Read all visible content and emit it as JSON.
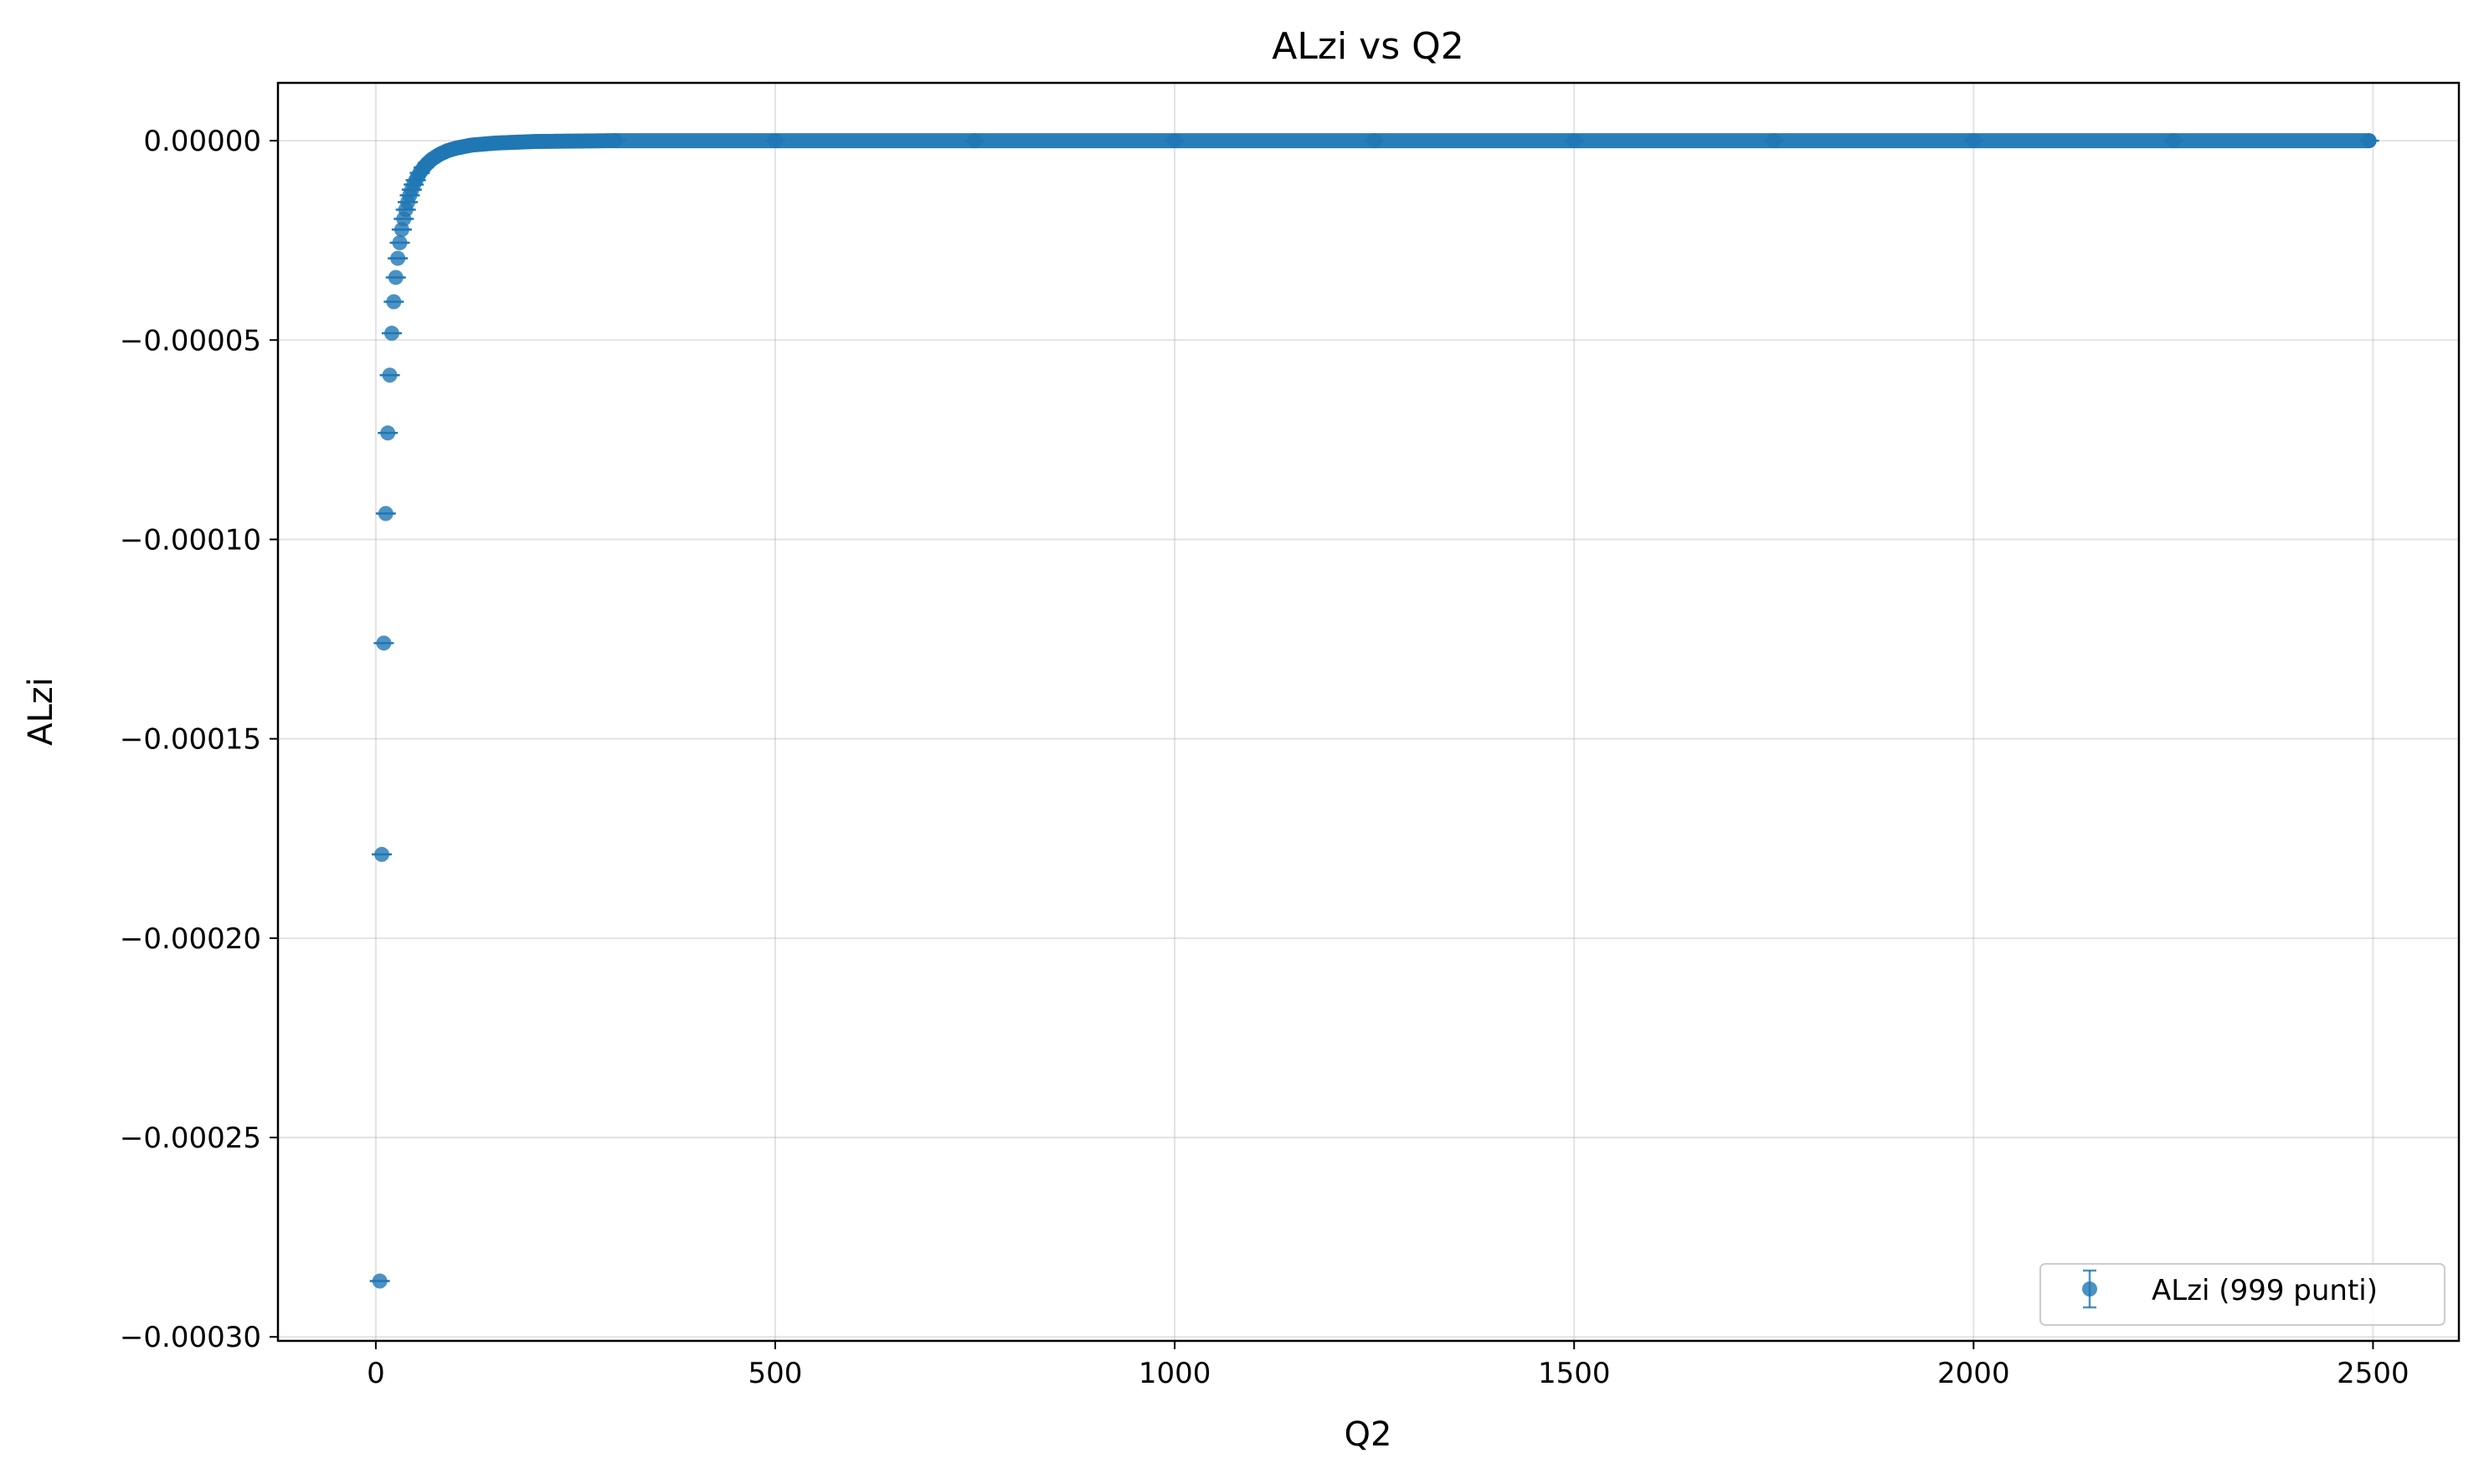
{
  "chart_data": {
    "type": "scatter",
    "title": "ALzi vs Q2",
    "xlabel": "Q2",
    "ylabel": "ALzi",
    "xlim": [
      -122.5,
      2607.5
    ],
    "ylim": [
      -0.000301,
      1.45e-05
    ],
    "x_ticks": [
      {
        "value": 0,
        "label": "0"
      },
      {
        "value": 500,
        "label": "500"
      },
      {
        "value": 1000,
        "label": "1000"
      },
      {
        "value": 1500,
        "label": "1500"
      },
      {
        "value": 2000,
        "label": "2000"
      },
      {
        "value": 2500,
        "label": "2500"
      }
    ],
    "y_ticks": [
      {
        "value": 0,
        "label": "0.00000"
      },
      {
        "value": -5e-05,
        "label": "−0.00005"
      },
      {
        "value": -0.0001,
        "label": "−0.00010"
      },
      {
        "value": -0.00015,
        "label": "−0.00015"
      },
      {
        "value": -0.0002,
        "label": "−0.00020"
      },
      {
        "value": -0.00025,
        "label": "−0.00025"
      },
      {
        "value": -0.0003,
        "label": "−0.00030"
      }
    ],
    "grid": true,
    "legend_position": "bottom-right",
    "series": [
      {
        "name": "ALzi (999 punti)",
        "color": "#1f77b4",
        "point_count": 999,
        "marker": "circle-with-errorbar",
        "points": [
          {
            "x": 5,
            "y": -0.000286
          },
          {
            "x": 7.5,
            "y": -0.000179
          },
          {
            "x": 10,
            "y": -0.000126
          },
          {
            "x": 12.5,
            "y": -9.35e-05
          },
          {
            "x": 15,
            "y": -7.33e-05
          },
          {
            "x": 17.5,
            "y": -5.88e-05
          },
          {
            "x": 20,
            "y": -4.83e-05
          },
          {
            "x": 22.5,
            "y": -4.04e-05
          },
          {
            "x": 25,
            "y": -3.43e-05
          },
          {
            "x": 27.5,
            "y": -2.95e-05
          },
          {
            "x": 30,
            "y": -2.56e-05
          },
          {
            "x": 32.5,
            "y": -2.23e-05
          },
          {
            "x": 35,
            "y": -1.96e-05
          },
          {
            "x": 37.5,
            "y": -1.73e-05
          },
          {
            "x": 40,
            "y": -1.54e-05
          },
          {
            "x": 42.5,
            "y": -1.37e-05
          },
          {
            "x": 45,
            "y": -1.23e-05
          },
          {
            "x": 47.5,
            "y": -1.1e-05
          },
          {
            "x": 50,
            "y": -9.9e-06
          },
          {
            "x": 55,
            "y": -8.1e-06
          },
          {
            "x": 60,
            "y": -6.7e-06
          },
          {
            "x": 65,
            "y": -5.6e-06
          },
          {
            "x": 70,
            "y": -4.7e-06
          },
          {
            "x": 80,
            "y": -3.4e-06
          },
          {
            "x": 90,
            "y": -2.5e-06
          },
          {
            "x": 100,
            "y": -1.9e-06
          },
          {
            "x": 120,
            "y": -1.1e-06
          },
          {
            "x": 150,
            "y": -6e-07
          },
          {
            "x": 200,
            "y": -2e-07
          },
          {
            "x": 250,
            "y": -1e-07
          },
          {
            "x": 300,
            "y": 0
          },
          {
            "x": 500,
            "y": 0
          },
          {
            "x": 750,
            "y": 0
          },
          {
            "x": 1000,
            "y": 0
          },
          {
            "x": 1250,
            "y": 0
          },
          {
            "x": 1500,
            "y": 0
          },
          {
            "x": 1750,
            "y": 0
          },
          {
            "x": 2000,
            "y": 0
          },
          {
            "x": 2250,
            "y": 0
          },
          {
            "x": 2495,
            "y": 0
          }
        ]
      }
    ]
  }
}
